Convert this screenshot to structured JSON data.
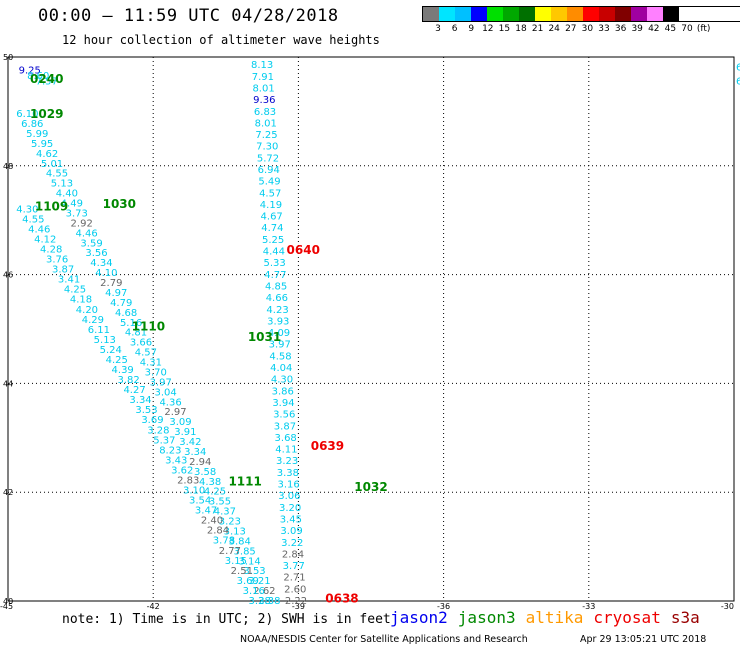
{
  "header": {
    "title": "00:00 – 11:59 UTC 04/28/2018",
    "subtitle": "12 hour collection of altimeter wave heights"
  },
  "legend": {
    "colors": [
      "#7a7a7a",
      "#00e5ff",
      "#00c0ff",
      "#0000ff",
      "#00e000",
      "#00a800",
      "#007000",
      "#ffff00",
      "#ffc800",
      "#ff8c00",
      "#ff0000",
      "#c80000",
      "#800000",
      "#a000a0",
      "#ff80ff",
      "#000000"
    ],
    "labels": [
      "3",
      "6",
      "9",
      "12",
      "15",
      "18",
      "21",
      "24",
      "27",
      "30",
      "33",
      "36",
      "39",
      "42",
      "45",
      "70",
      "(ft)"
    ]
  },
  "axes": {
    "lat_ticks": [
      "50",
      "48",
      "46",
      "44",
      "42",
      "40"
    ],
    "lon_ticks": [
      "-45",
      "-42",
      "-39",
      "-36",
      "-33",
      "-30"
    ]
  },
  "times": [
    {
      "t": "0240",
      "lon": -44.2,
      "lat": 49.6,
      "c": "#008800"
    },
    {
      "t": "1029",
      "lon": -44.2,
      "lat": 48.95,
      "c": "#008800"
    },
    {
      "t": "1109",
      "lon": -44.1,
      "lat": 47.25,
      "c": "#008800"
    },
    {
      "t": "1030",
      "lon": -42.7,
      "lat": 47.3,
      "c": "#008800"
    },
    {
      "t": "0640",
      "lon": -38.9,
      "lat": 46.45,
      "c": "#ee0000"
    },
    {
      "t": "1110",
      "lon": -42.1,
      "lat": 45.05,
      "c": "#008800"
    },
    {
      "t": "1031",
      "lon": -39.7,
      "lat": 44.85,
      "c": "#008800"
    },
    {
      "t": "0639",
      "lon": -38.4,
      "lat": 42.85,
      "c": "#ee0000"
    },
    {
      "t": "1111",
      "lon": -40.1,
      "lat": 42.2,
      "c": "#008800"
    },
    {
      "t": "1032",
      "lon": -37.5,
      "lat": 42.1,
      "c": "#008800"
    },
    {
      "t": "0638",
      "lon": -38.1,
      "lat": 40.05,
      "c": "#ee0000"
    }
  ],
  "tracks": [
    {
      "lon0": -44.55,
      "lat0": 49.75,
      "lon1": -44.2,
      "lat1": 49.55,
      "c": "#00ccee",
      "v": [
        "9.25",
        "8.60",
        "7.57"
      ],
      "c0": "#0000cc"
    },
    {
      "lon0": -44.6,
      "lat0": 48.95,
      "lon1": -39.6,
      "lat1": 40.0,
      "c": "#00ccee",
      "v": [
        "6.10",
        "6.86",
        "5.99",
        "5.95",
        "4.62",
        "5.01",
        "4.55",
        "5.13",
        "4.40",
        "4.49",
        "3.73",
        "2.92",
        "4.46",
        "3.59",
        "3.56",
        "4.34",
        "4.10",
        "2.79",
        "4.97",
        "4.79",
        "4.68",
        "5.16",
        "4.81",
        "3.66",
        "4.57",
        "4.31",
        "3.70",
        "3.97",
        "3.04",
        "4.36",
        "2.97",
        "3.09",
        "3.91",
        "3.42",
        "3.34",
        "2.94",
        "3.58",
        "4.38",
        "4.25",
        "3.55",
        "4.37",
        "3.23",
        "3.13",
        "3.84",
        "3.85",
        "3.14",
        "3.53",
        "3.21",
        "2.62",
        "3.38"
      ]
    },
    {
      "lon0": -44.6,
      "lat0": 47.2,
      "lon1": -39.8,
      "lat1": 40.0,
      "c": "#00ccee",
      "v": [
        "4.30",
        "4.55",
        "4.46",
        "4.12",
        "4.28",
        "3.76",
        "3.87",
        "3.41",
        "4.25",
        "4.18",
        "4.20",
        "4.29",
        "6.11",
        "5.13",
        "5.24",
        "4.25",
        "4.39",
        "3.82",
        "4.27",
        "3.34",
        "3.53",
        "3.69",
        "3.28",
        "5.37",
        "8.23",
        "3.43",
        "3.62",
        "2.83",
        "3.10",
        "3.54",
        "3.47",
        "2.40",
        "2.84",
        "3.78",
        "2.77",
        "3.15",
        "2.51",
        "3.69",
        "3.16",
        "3.28"
      ]
    },
    {
      "lon0": -39.75,
      "lat0": 49.85,
      "lon1": -39.05,
      "lat1": 40.0,
      "c": "#00ccee",
      "v": [
        "8.13",
        "7.91",
        "8.01",
        "9.36",
        "6.83",
        "8.01",
        "7.25",
        "7.30",
        "5.72",
        "6.94",
        "5.49",
        "4.57",
        "4.19",
        "4.67",
        "4.74",
        "5.25",
        "4.44",
        "5.33",
        "4.77",
        "4.85",
        "4.66",
        "4.23",
        "3.93",
        "4.09",
        "3.97",
        "4.58",
        "4.04",
        "4.30",
        "3.86",
        "3.94",
        "3.56",
        "3.87",
        "3.68",
        "4.11",
        "3.23",
        "3.38",
        "3.16",
        "3.06",
        "3.20",
        "3.45",
        "3.09",
        "3.22",
        "2.84",
        "3.77",
        "2.71",
        "2.60",
        "2.22"
      ]
    }
  ],
  "edge_values": [
    "6.",
    "6"
  ],
  "footer": {
    "note": "note: 1) Time is in UTC; 2) SWH is in feet",
    "satellites": [
      {
        "name": "jason2",
        "color": "#0000ee"
      },
      {
        "name": "jason3",
        "color": "#008800"
      },
      {
        "name": "altika",
        "color": "#ff9900"
      },
      {
        "name": "cryosat",
        "color": "#ee0000"
      },
      {
        "name": "s3a",
        "color": "#990000"
      }
    ],
    "credit": "NOAA/NESDIS Center for Satellite Applications and Research",
    "timestamp": "Apr 29 13:05:21 UTC 2018"
  }
}
